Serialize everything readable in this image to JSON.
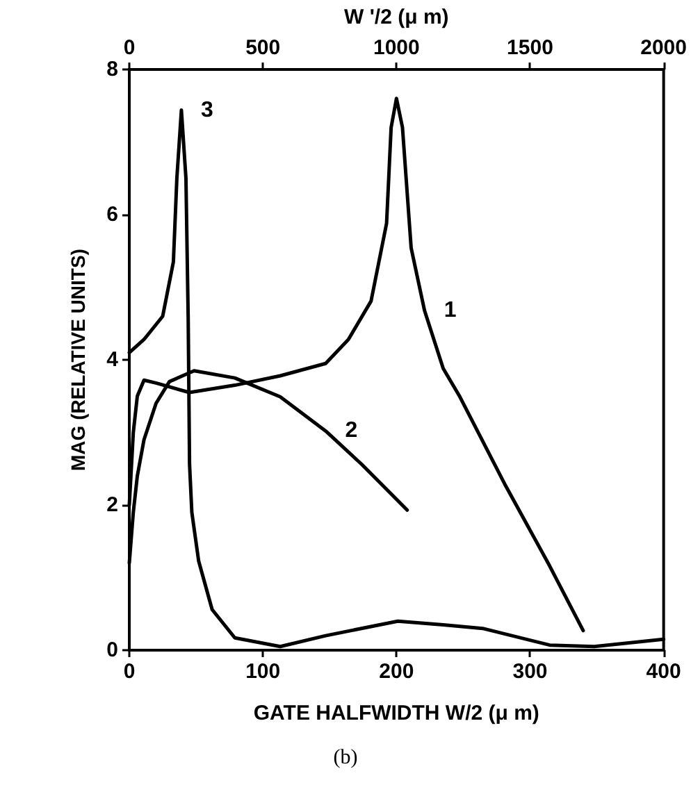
{
  "chart_data": {
    "type": "line",
    "xlabel": "GATE HALFWIDTH W/2 (μ m)",
    "x2label": "W '/2 (μ m)",
    "ylabel": "MAG (RELATIVE UNITS)",
    "xlim": [
      0,
      400
    ],
    "xticks": [
      0,
      100,
      200,
      300,
      400
    ],
    "x2lim": [
      0,
      2000
    ],
    "x2ticks": [
      0,
      500,
      1000,
      1500,
      2000
    ],
    "ylim": [
      0,
      8
    ],
    "yticks": [
      0,
      2,
      4,
      6,
      8
    ],
    "grid": false,
    "marker": "none",
    "line_style": "solid",
    "series": [
      {
        "name": "1",
        "color": "#000000",
        "x": [
          0,
          3,
          6,
          11,
          20,
          45,
          79,
          113,
          147,
          164,
          181,
          192.6,
          196,
          200,
          204.5,
          211,
          221,
          235,
          247.5,
          281,
          314.7,
          339.8
        ],
        "values": [
          2.0,
          3.0,
          3.5,
          3.72,
          3.68,
          3.55,
          3.65,
          3.78,
          3.95,
          4.28,
          4.81,
          5.88,
          7.2,
          7.6,
          7.2,
          5.54,
          4.68,
          3.88,
          3.49,
          2.29,
          1.16,
          0.27
        ]
      },
      {
        "name": "2",
        "color": "#000000",
        "x": [
          0,
          3,
          6,
          11,
          20,
          30,
          48.5,
          79,
          113,
          147,
          174,
          208
        ],
        "values": [
          1.2,
          1.9,
          2.4,
          2.9,
          3.4,
          3.7,
          3.85,
          3.75,
          3.49,
          3.02,
          2.56,
          1.93
        ]
      },
      {
        "name": "3",
        "color": "#000000",
        "x": [
          0,
          11,
          25,
          33,
          35.6,
          39,
          42.4,
          44.1,
          45.1,
          46.8,
          51.9,
          62,
          79,
          113,
          147,
          201,
          235,
          264.5,
          314.7,
          348,
          400
        ],
        "values": [
          4.1,
          4.28,
          4.6,
          5.35,
          6.5,
          7.44,
          6.5,
          4.55,
          2.56,
          1.9,
          1.23,
          0.56,
          0.17,
          0.05,
          0.2,
          0.4,
          0.35,
          0.3,
          0.07,
          0.05,
          0.15
        ]
      }
    ],
    "annotations": [
      "(b)"
    ]
  }
}
